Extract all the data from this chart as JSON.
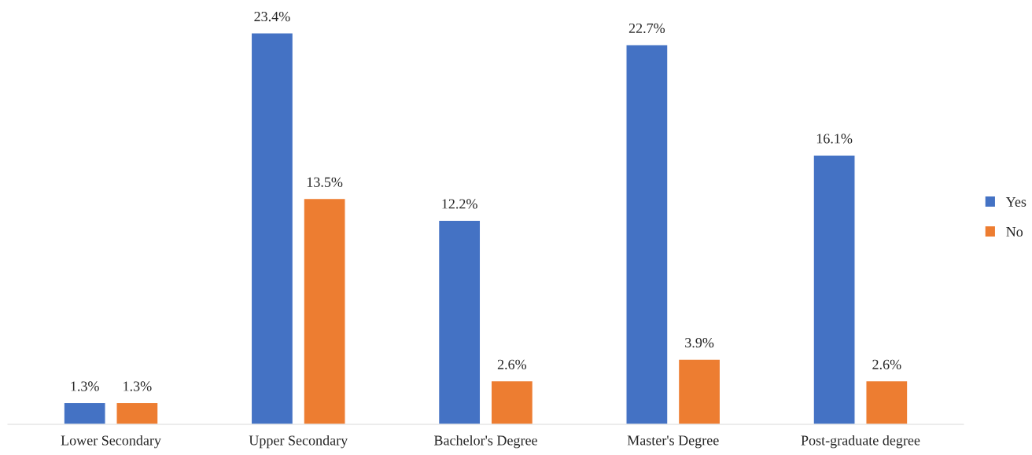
{
  "chart_data": {
    "type": "bar",
    "categories": [
      "Lower Secondary",
      "Upper Secondary",
      "Bachelor's Degree",
      "Master's Degree",
      "Post-graduate degree"
    ],
    "series": [
      {
        "name": "Yes",
        "color": "#4472c4",
        "values": [
          1.3,
          23.4,
          12.2,
          22.7,
          16.1
        ],
        "value_labels": [
          "1.3%",
          "23.4%",
          "12.2%",
          "22.7%",
          "16.1%"
        ]
      },
      {
        "name": "No",
        "color": "#ed7d31",
        "values": [
          1.3,
          13.5,
          2.6,
          3.9,
          2.6
        ],
        "value_labels": [
          "1.3%",
          "13.5%",
          "2.6%",
          "3.9%",
          "2.6%"
        ]
      }
    ],
    "legend": "right",
    "grid": false
  }
}
